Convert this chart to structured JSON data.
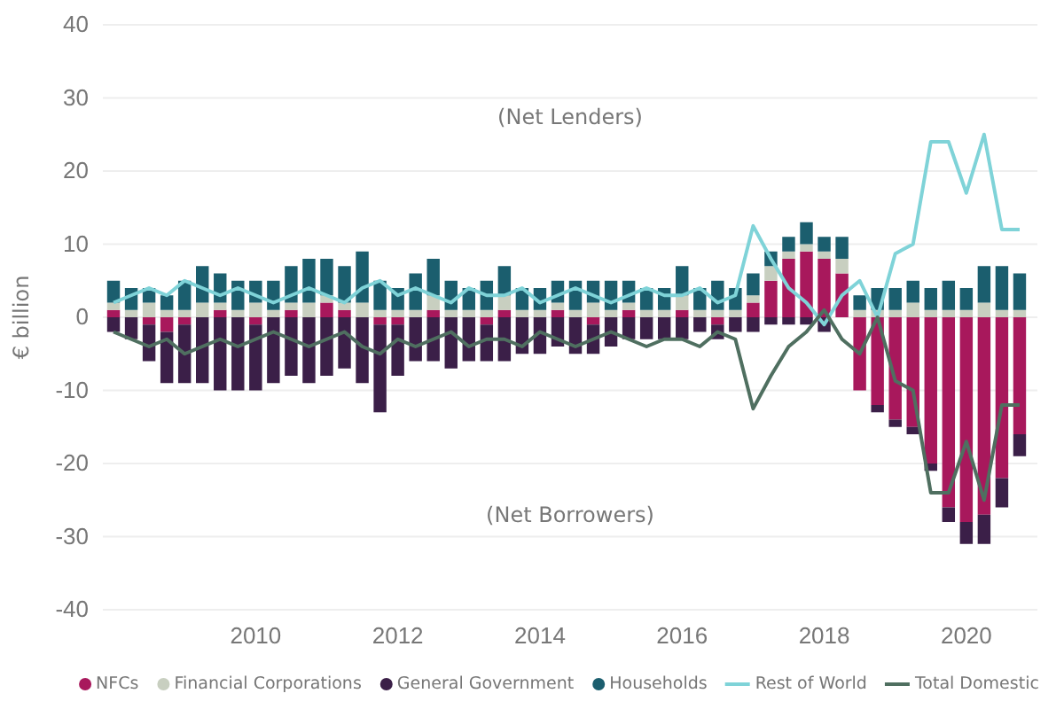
{
  "chart_data": {
    "type": "bar",
    "stacked": true,
    "ylabel": "€ billion",
    "annotations": [
      "(Net Lenders)",
      "(Net Borrowers)"
    ],
    "x": [
      2008,
      2008.25,
      2008.5,
      2008.75,
      2009,
      2009.25,
      2009.5,
      2009.75,
      2010,
      2010.25,
      2010.5,
      2010.75,
      2011,
      2011.25,
      2011.5,
      2011.75,
      2012,
      2012.25,
      2012.5,
      2012.75,
      2013,
      2013.25,
      2013.5,
      2013.75,
      2014,
      2014.25,
      2014.5,
      2014.75,
      2015,
      2015.25,
      2015.5,
      2015.75,
      2016,
      2016.25,
      2016.5,
      2016.75,
      2017,
      2017.25,
      2017.5,
      2017.75,
      2018,
      2018.25,
      2018.5,
      2018.75,
      2019,
      2019.25,
      2019.5,
      2019.75,
      2020,
      2020.25,
      2020.5,
      2020.75
    ],
    "xlim": [
      2007.85,
      2021
    ],
    "xticks": [
      2010,
      2012,
      2014,
      2016,
      2018,
      2020
    ],
    "ylim": [
      -40,
      40
    ],
    "yticks": [
      -40,
      -30,
      -20,
      -10,
      0,
      10,
      20,
      30,
      40
    ],
    "grid": "y",
    "legend": "bottom",
    "series": [
      {
        "name": "NFCs",
        "color": "#a8185c",
        "values": [
          1,
          0,
          -1,
          -2,
          -1,
          0,
          1,
          0,
          -1,
          0,
          1,
          0,
          2,
          1,
          0,
          -1,
          -1,
          0,
          1,
          0,
          0,
          -1,
          1,
          0,
          0,
          1,
          0,
          -1,
          0,
          1,
          0,
          0,
          1,
          0,
          -1,
          0,
          2,
          5,
          8,
          9,
          8,
          6,
          -10,
          -12,
          -14,
          -15,
          -20,
          -26,
          -28,
          -27,
          -22,
          -16
        ]
      },
      {
        "name": "Financial Corporations",
        "color": "#c8cfc0",
        "values": [
          1,
          1,
          2,
          1,
          1,
          2,
          1,
          1,
          2,
          1,
          1,
          2,
          1,
          1,
          2,
          1,
          1,
          1,
          2,
          1,
          1,
          1,
          2,
          1,
          1,
          1,
          1,
          2,
          1,
          1,
          1,
          1,
          2,
          1,
          1,
          1,
          1,
          2,
          1,
          1,
          1,
          2,
          1,
          1,
          1,
          2,
          1,
          1,
          1,
          2,
          1,
          1
        ]
      },
      {
        "name": "General Government",
        "color": "#3b1f48",
        "values": [
          -2,
          -3,
          -5,
          -7,
          -8,
          -9,
          -10,
          -10,
          -9,
          -9,
          -8,
          -9,
          -8,
          -7,
          -9,
          -12,
          -7,
          -6,
          -6,
          -7,
          -6,
          -5,
          -6,
          -5,
          -5,
          -4,
          -5,
          -4,
          -4,
          -3,
          -3,
          -3,
          -3,
          -2,
          -2,
          -2,
          -2,
          -1,
          -1,
          -1,
          -2,
          0,
          0,
          -1,
          -1,
          -1,
          -1,
          -2,
          -3,
          -4,
          -4,
          -3
        ]
      },
      {
        "name": "Households",
        "color": "#1b5e6e",
        "values": [
          3,
          3,
          2,
          2,
          4,
          5,
          4,
          4,
          3,
          4,
          5,
          6,
          5,
          5,
          7,
          4,
          3,
          5,
          5,
          4,
          3,
          4,
          4,
          3,
          3,
          3,
          4,
          3,
          4,
          3,
          3,
          3,
          4,
          3,
          4,
          3,
          3,
          2,
          2,
          3,
          2,
          3,
          2,
          3,
          3,
          3,
          3,
          4,
          3,
          5,
          6,
          5
        ]
      },
      {
        "name": "Rest of World",
        "type": "line",
        "color": "#7fd3d8",
        "values": [
          2,
          3,
          4,
          3,
          5,
          4,
          3,
          4,
          3,
          2,
          3,
          4,
          3,
          2,
          4,
          5,
          3,
          4,
          3,
          2,
          4,
          3,
          3,
          4,
          2,
          3,
          4,
          3,
          2,
          3,
          4,
          3,
          3,
          4,
          2,
          3,
          12.5,
          8,
          4,
          2,
          -1,
          3,
          5,
          0,
          8.7,
          10,
          24,
          24,
          17,
          25,
          12,
          12
        ]
      },
      {
        "name": "Total Domestic",
        "type": "line",
        "color": "#4f6f60",
        "values": [
          -2,
          -3,
          -4,
          -3,
          -5,
          -4,
          -3,
          -4,
          -3,
          -2,
          -3,
          -4,
          -3,
          -2,
          -4,
          -5,
          -3,
          -4,
          -3,
          -2,
          -4,
          -3,
          -3,
          -4,
          -2,
          -3,
          -4,
          -3,
          -2,
          -3,
          -4,
          -3,
          -3,
          -4,
          -2,
          -3,
          -12.5,
          -8,
          -4,
          -2,
          1,
          -3,
          -5,
          0,
          -8.7,
          -10,
          -24,
          -24,
          -17,
          -25,
          -12,
          -12
        ]
      }
    ]
  }
}
